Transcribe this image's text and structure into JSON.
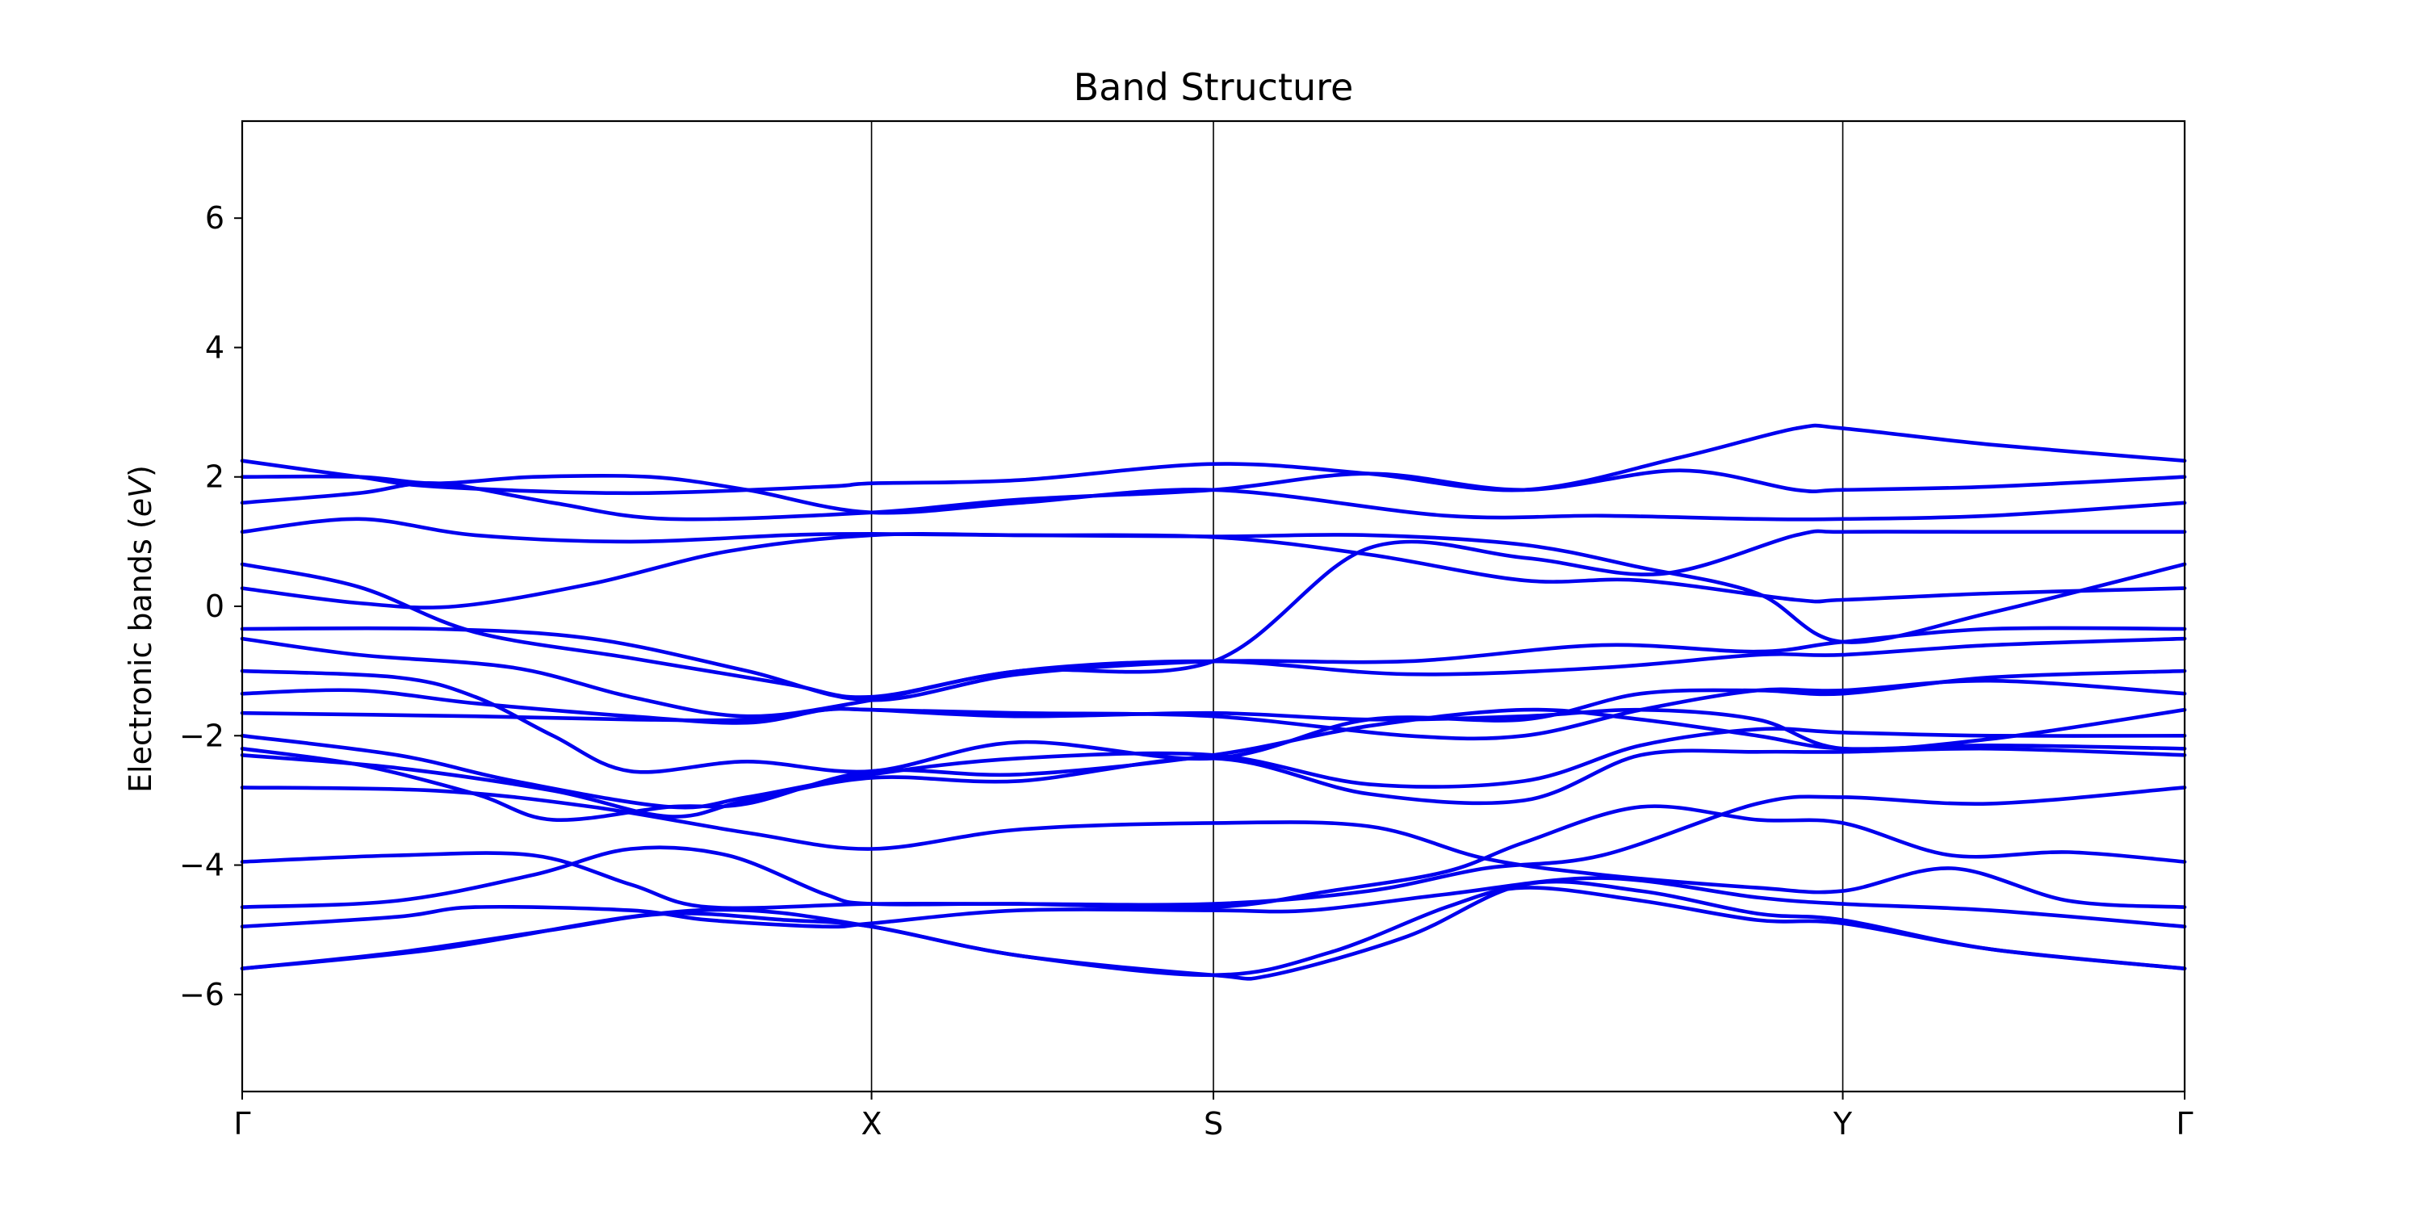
{
  "chart_data": {
    "type": "line",
    "title": "Band Structure",
    "xlabel": "",
    "ylabel_main": "Electronic bands (",
    "ylabel_unit": "eV",
    "ylabel_close": ")",
    "ylim": [
      -7.5,
      7.5
    ],
    "yticks": [
      -6,
      -4,
      -2,
      0,
      2,
      4,
      6
    ],
    "xticks": [
      {
        "label": "Γ",
        "x": 0
      },
      {
        "label": "X",
        "x": 0.324
      },
      {
        "label": "S",
        "x": 0.5
      },
      {
        "label": "Y",
        "x": 0.824
      },
      {
        "label": "Γ",
        "x": 1
      }
    ],
    "line_color": "#0000ee",
    "grid": false,
    "high_symmetry_vlines": true,
    "series": [
      {
        "points": [
          [
            0,
            2.25
          ],
          [
            0.06,
            2.0
          ],
          [
            0.1,
            1.85
          ],
          [
            0.2,
            1.75
          ],
          [
            0.3,
            1.85
          ],
          [
            0.324,
            1.9
          ],
          [
            0.4,
            1.95
          ],
          [
            0.5,
            2.2
          ],
          [
            0.58,
            2.05
          ],
          [
            0.66,
            1.8
          ],
          [
            0.74,
            2.3
          ],
          [
            0.8,
            2.75
          ],
          [
            0.824,
            2.75
          ],
          [
            0.9,
            2.5
          ],
          [
            1,
            2.25
          ]
        ]
      },
      {
        "points": [
          [
            0,
            2.0
          ],
          [
            0.06,
            2.0
          ],
          [
            0.1,
            1.9
          ],
          [
            0.15,
            2.0
          ],
          [
            0.21,
            2.0
          ],
          [
            0.26,
            1.8
          ],
          [
            0.324,
            1.45
          ],
          [
            0.4,
            1.6
          ],
          [
            0.5,
            1.8
          ],
          [
            0.62,
            1.4
          ],
          [
            0.7,
            1.4
          ],
          [
            0.78,
            1.35
          ],
          [
            0.824,
            1.35
          ],
          [
            0.9,
            1.4
          ],
          [
            1,
            1.6
          ]
        ]
      },
      {
        "points": [
          [
            0,
            1.6
          ],
          [
            0.06,
            1.75
          ],
          [
            0.1,
            1.9
          ],
          [
            0.16,
            1.6
          ],
          [
            0.22,
            1.35
          ],
          [
            0.324,
            1.45
          ],
          [
            0.4,
            1.65
          ],
          [
            0.5,
            1.8
          ],
          [
            0.58,
            2.05
          ],
          [
            0.66,
            1.8
          ],
          [
            0.74,
            2.1
          ],
          [
            0.8,
            1.8
          ],
          [
            0.824,
            1.8
          ],
          [
            0.9,
            1.85
          ],
          [
            1,
            2.0
          ]
        ]
      },
      {
        "points": [
          [
            0,
            1.15
          ],
          [
            0.06,
            1.35
          ],
          [
            0.12,
            1.1
          ],
          [
            0.2,
            1.0
          ],
          [
            0.28,
            1.1
          ],
          [
            0.324,
            1.12
          ],
          [
            0.4,
            1.1
          ],
          [
            0.5,
            1.07
          ],
          [
            0.58,
            0.8
          ],
          [
            0.66,
            0.4
          ],
          [
            0.72,
            0.4
          ],
          [
            0.8,
            0.1
          ],
          [
            0.824,
            0.1
          ],
          [
            0.9,
            0.2
          ],
          [
            1,
            0.28
          ]
        ]
      },
      {
        "points": [
          [
            0,
            0.65
          ],
          [
            0.06,
            0.3
          ],
          [
            0.12,
            -0.4
          ],
          [
            0.2,
            -0.8
          ],
          [
            0.28,
            -1.2
          ],
          [
            0.324,
            -1.4
          ],
          [
            0.4,
            -1.0
          ],
          [
            0.5,
            -0.85
          ],
          [
            0.58,
            0.9
          ],
          [
            0.66,
            0.75
          ],
          [
            0.73,
            0.5
          ],
          [
            0.8,
            1.1
          ],
          [
            0.824,
            1.15
          ],
          [
            0.9,
            1.15
          ],
          [
            1,
            1.15
          ]
        ]
      },
      {
        "points": [
          [
            0,
            0.28
          ],
          [
            0.06,
            0.05
          ],
          [
            0.11,
            0.0
          ],
          [
            0.18,
            0.35
          ],
          [
            0.25,
            0.85
          ],
          [
            0.324,
            1.1
          ],
          [
            0.4,
            1.1
          ],
          [
            0.5,
            1.08
          ],
          [
            0.58,
            1.1
          ],
          [
            0.66,
            0.95
          ],
          [
            0.72,
            0.6
          ],
          [
            0.78,
            0.2
          ],
          [
            0.824,
            -0.55
          ],
          [
            0.9,
            -0.1
          ],
          [
            1,
            0.65
          ]
        ]
      },
      {
        "points": [
          [
            0,
            -0.35
          ],
          [
            0.1,
            -0.35
          ],
          [
            0.18,
            -0.5
          ],
          [
            0.26,
            -1.0
          ],
          [
            0.324,
            -1.45
          ],
          [
            0.4,
            -1.05
          ],
          [
            0.5,
            -0.85
          ],
          [
            0.6,
            -0.85
          ],
          [
            0.7,
            -0.6
          ],
          [
            0.78,
            -0.7
          ],
          [
            0.824,
            -0.55
          ],
          [
            0.9,
            -0.35
          ],
          [
            1,
            -0.35
          ]
        ]
      },
      {
        "points": [
          [
            0,
            -0.5
          ],
          [
            0.06,
            -0.75
          ],
          [
            0.14,
            -0.95
          ],
          [
            0.2,
            -1.4
          ],
          [
            0.26,
            -1.7
          ],
          [
            0.324,
            -1.45
          ],
          [
            0.4,
            -1.0
          ],
          [
            0.5,
            -0.85
          ],
          [
            0.6,
            -1.05
          ],
          [
            0.7,
            -0.95
          ],
          [
            0.78,
            -0.75
          ],
          [
            0.824,
            -0.75
          ],
          [
            0.9,
            -0.6
          ],
          [
            1,
            -0.5
          ]
        ]
      },
      {
        "points": [
          [
            0,
            -1.0
          ],
          [
            0.08,
            -1.1
          ],
          [
            0.12,
            -1.4
          ],
          [
            0.16,
            -2.0
          ],
          [
            0.2,
            -2.55
          ],
          [
            0.26,
            -2.4
          ],
          [
            0.324,
            -2.55
          ],
          [
            0.4,
            -2.1
          ],
          [
            0.5,
            -2.35
          ],
          [
            0.58,
            -1.75
          ],
          [
            0.66,
            -1.75
          ],
          [
            0.72,
            -1.35
          ],
          [
            0.78,
            -1.3
          ],
          [
            0.824,
            -1.35
          ],
          [
            0.9,
            -1.1
          ],
          [
            1,
            -1.0
          ]
        ]
      },
      {
        "points": [
          [
            0,
            -1.35
          ],
          [
            0.06,
            -1.3
          ],
          [
            0.12,
            -1.5
          ],
          [
            0.2,
            -1.7
          ],
          [
            0.26,
            -1.8
          ],
          [
            0.3,
            -1.6
          ],
          [
            0.324,
            -1.6
          ],
          [
            0.4,
            -1.65
          ],
          [
            0.5,
            -1.7
          ],
          [
            0.6,
            -2.0
          ],
          [
            0.66,
            -2.0
          ],
          [
            0.72,
            -1.6
          ],
          [
            0.78,
            -1.3
          ],
          [
            0.824,
            -1.3
          ],
          [
            0.9,
            -1.15
          ],
          [
            1,
            -1.35
          ]
        ]
      },
      {
        "points": [
          [
            0,
            -1.65
          ],
          [
            0.12,
            -1.7
          ],
          [
            0.2,
            -1.75
          ],
          [
            0.26,
            -1.75
          ],
          [
            0.3,
            -1.6
          ],
          [
            0.324,
            -1.6
          ],
          [
            0.4,
            -1.7
          ],
          [
            0.5,
            -1.65
          ],
          [
            0.58,
            -1.75
          ],
          [
            0.66,
            -1.7
          ],
          [
            0.72,
            -1.6
          ],
          [
            0.78,
            -1.75
          ],
          [
            0.824,
            -2.2
          ],
          [
            0.9,
            -2.05
          ],
          [
            1,
            -1.6
          ]
        ]
      },
      {
        "points": [
          [
            0,
            -2.0
          ],
          [
            0.08,
            -2.3
          ],
          [
            0.14,
            -2.7
          ],
          [
            0.22,
            -3.1
          ],
          [
            0.26,
            -2.95
          ],
          [
            0.324,
            -2.6
          ],
          [
            0.4,
            -2.35
          ],
          [
            0.5,
            -2.3
          ],
          [
            0.58,
            -2.75
          ],
          [
            0.66,
            -2.7
          ],
          [
            0.72,
            -2.15
          ],
          [
            0.78,
            -1.9
          ],
          [
            0.824,
            -1.95
          ],
          [
            0.9,
            -2.0
          ],
          [
            1,
            -2.0
          ]
        ]
      },
      {
        "points": [
          [
            0,
            -2.2
          ],
          [
            0.06,
            -2.45
          ],
          [
            0.12,
            -2.9
          ],
          [
            0.16,
            -3.3
          ],
          [
            0.22,
            -3.1
          ],
          [
            0.26,
            -3.05
          ],
          [
            0.324,
            -2.55
          ],
          [
            0.4,
            -2.6
          ],
          [
            0.5,
            -2.3
          ],
          [
            0.58,
            -1.85
          ],
          [
            0.66,
            -1.6
          ],
          [
            0.72,
            -1.75
          ],
          [
            0.78,
            -2.0
          ],
          [
            0.824,
            -2.2
          ],
          [
            0.9,
            -2.15
          ],
          [
            1,
            -2.2
          ]
        ]
      },
      {
        "points": [
          [
            0,
            -2.3
          ],
          [
            0.08,
            -2.5
          ],
          [
            0.16,
            -2.85
          ],
          [
            0.22,
            -3.25
          ],
          [
            0.26,
            -3.0
          ],
          [
            0.324,
            -2.65
          ],
          [
            0.4,
            -2.7
          ],
          [
            0.5,
            -2.35
          ],
          [
            0.58,
            -2.9
          ],
          [
            0.66,
            -3.0
          ],
          [
            0.72,
            -2.3
          ],
          [
            0.78,
            -2.25
          ],
          [
            0.824,
            -2.25
          ],
          [
            0.9,
            -2.2
          ],
          [
            1,
            -2.3
          ]
        ]
      },
      {
        "points": [
          [
            0,
            -2.8
          ],
          [
            0.1,
            -2.85
          ],
          [
            0.18,
            -3.1
          ],
          [
            0.26,
            -3.5
          ],
          [
            0.324,
            -3.75
          ],
          [
            0.4,
            -3.45
          ],
          [
            0.5,
            -3.35
          ],
          [
            0.58,
            -3.4
          ],
          [
            0.64,
            -3.9
          ],
          [
            0.7,
            -4.15
          ],
          [
            0.78,
            -4.35
          ],
          [
            0.824,
            -4.4
          ],
          [
            0.88,
            -4.05
          ],
          [
            0.94,
            -4.55
          ],
          [
            1,
            -4.65
          ]
        ]
      },
      {
        "points": [
          [
            0,
            -3.95
          ],
          [
            0.08,
            -3.85
          ],
          [
            0.15,
            -3.85
          ],
          [
            0.2,
            -4.3
          ],
          [
            0.24,
            -4.65
          ],
          [
            0.324,
            -4.6
          ],
          [
            0.4,
            -4.6
          ],
          [
            0.5,
            -4.6
          ],
          [
            0.58,
            -4.4
          ],
          [
            0.64,
            -4.05
          ],
          [
            0.7,
            -3.85
          ],
          [
            0.78,
            -3.05
          ],
          [
            0.824,
            -2.95
          ],
          [
            0.9,
            -3.05
          ],
          [
            1,
            -2.8
          ]
        ]
      },
      {
        "points": [
          [
            0,
            -4.65
          ],
          [
            0.08,
            -4.55
          ],
          [
            0.15,
            -4.15
          ],
          [
            0.2,
            -3.75
          ],
          [
            0.25,
            -3.85
          ],
          [
            0.3,
            -4.45
          ],
          [
            0.324,
            -4.6
          ],
          [
            0.4,
            -4.6
          ],
          [
            0.5,
            -4.65
          ],
          [
            0.56,
            -4.4
          ],
          [
            0.62,
            -4.1
          ],
          [
            0.66,
            -3.65
          ],
          [
            0.72,
            -3.1
          ],
          [
            0.78,
            -3.3
          ],
          [
            0.824,
            -3.35
          ],
          [
            0.88,
            -3.85
          ],
          [
            0.94,
            -3.8
          ],
          [
            1,
            -3.95
          ]
        ]
      },
      {
        "points": [
          [
            0,
            -4.95
          ],
          [
            0.08,
            -4.8
          ],
          [
            0.12,
            -4.65
          ],
          [
            0.2,
            -4.7
          ],
          [
            0.24,
            -4.85
          ],
          [
            0.3,
            -4.95
          ],
          [
            0.324,
            -4.9
          ],
          [
            0.4,
            -4.7
          ],
          [
            0.5,
            -4.7
          ],
          [
            0.55,
            -4.7
          ],
          [
            0.62,
            -4.45
          ],
          [
            0.7,
            -4.2
          ],
          [
            0.78,
            -4.5
          ],
          [
            0.824,
            -4.6
          ],
          [
            0.9,
            -4.7
          ],
          [
            1,
            -4.95
          ]
        ]
      },
      {
        "points": [
          [
            0,
            -5.6
          ],
          [
            0.08,
            -5.35
          ],
          [
            0.16,
            -5.0
          ],
          [
            0.22,
            -4.75
          ],
          [
            0.28,
            -4.85
          ],
          [
            0.324,
            -4.95
          ],
          [
            0.4,
            -5.4
          ],
          [
            0.5,
            -5.7
          ],
          [
            0.56,
            -5.35
          ],
          [
            0.62,
            -4.65
          ],
          [
            0.66,
            -4.35
          ],
          [
            0.72,
            -4.55
          ],
          [
            0.78,
            -4.85
          ],
          [
            0.824,
            -4.9
          ],
          [
            0.9,
            -5.3
          ],
          [
            1,
            -5.6
          ]
        ]
      },
      {
        "points": [
          [
            0,
            -5.6
          ],
          [
            0.1,
            -5.3
          ],
          [
            0.2,
            -4.8
          ],
          [
            0.26,
            -4.7
          ],
          [
            0.324,
            -4.95
          ],
          [
            0.4,
            -5.4
          ],
          [
            0.5,
            -5.7
          ],
          [
            0.53,
            -5.7
          ],
          [
            0.6,
            -5.1
          ],
          [
            0.66,
            -4.3
          ],
          [
            0.72,
            -4.4
          ],
          [
            0.78,
            -4.75
          ],
          [
            0.824,
            -4.85
          ],
          [
            0.9,
            -5.3
          ],
          [
            1,
            -5.6
          ]
        ]
      }
    ]
  }
}
